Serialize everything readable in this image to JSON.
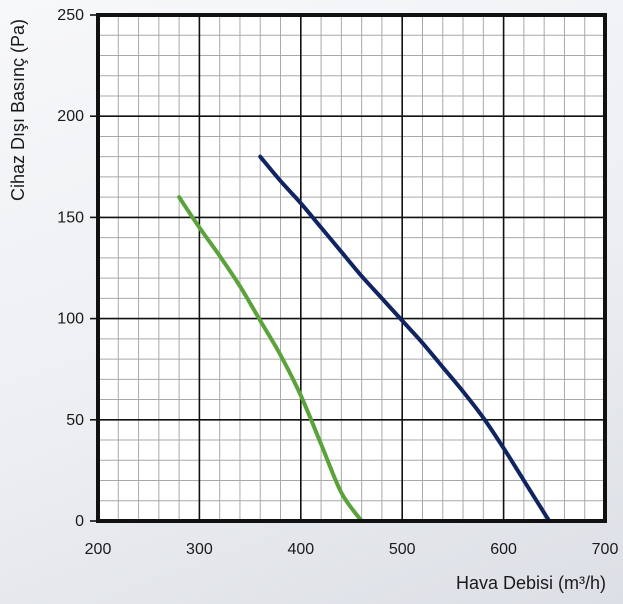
{
  "chart_data": {
    "type": "line",
    "xlabel": "Hava Debisi (m³/h)",
    "ylabel": "Cihaz Dışı Basınç (Pa)",
    "xlim": [
      200,
      700
    ],
    "ylim": [
      0,
      250
    ],
    "x_ticks": [
      200,
      300,
      400,
      500,
      600,
      700
    ],
    "y_ticks": [
      0,
      50,
      100,
      150,
      200,
      250
    ],
    "major_x_step": 100,
    "major_y_step": 50,
    "minor_x_step": 20,
    "minor_y_step": 10,
    "grid": true,
    "series": [
      {
        "color": "#5aa33a",
        "x": [
          280,
          300,
          320,
          340,
          360,
          380,
          400,
          420,
          440,
          460
        ],
        "y": [
          160,
          145,
          131,
          116,
          99,
          82,
          62,
          38,
          14,
          0
        ]
      },
      {
        "color": "#0f2460",
        "x": [
          360,
          380,
          400,
          420,
          440,
          460,
          480,
          500,
          520,
          540,
          560,
          580,
          600,
          620,
          645
        ],
        "y": [
          180,
          168,
          157,
          145,
          133,
          121,
          110,
          99,
          88,
          76,
          64,
          51,
          36,
          20,
          0
        ]
      }
    ]
  }
}
